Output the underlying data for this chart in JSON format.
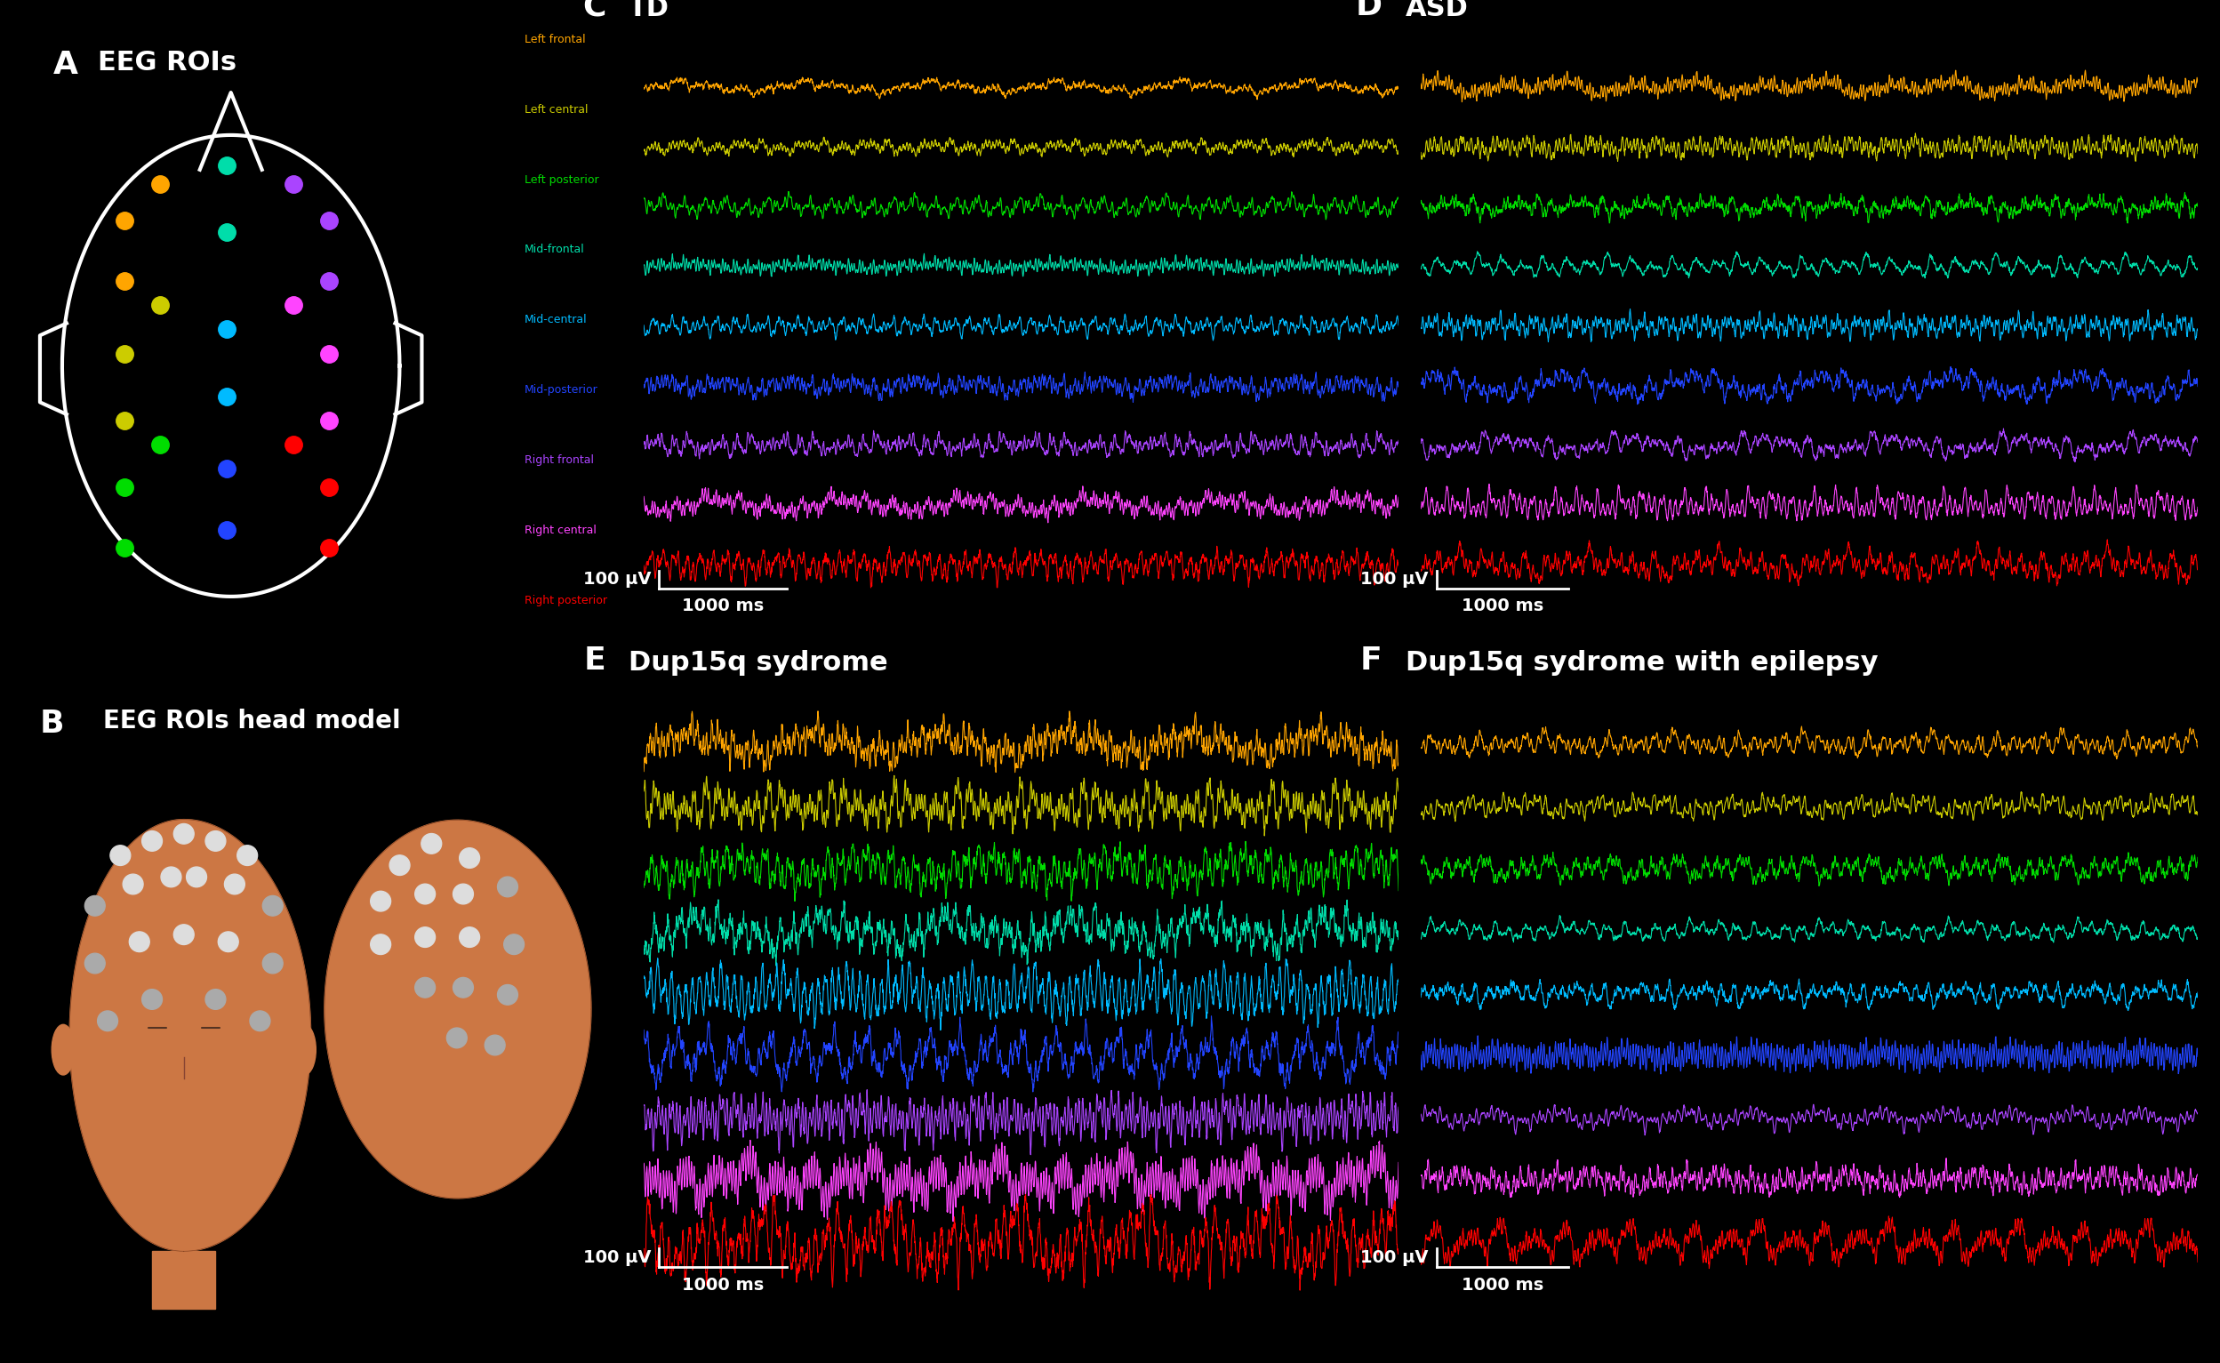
{
  "background_color": "#000000",
  "roi_colors": {
    "Left frontal": "#ffa500",
    "Left central": "#cccc00",
    "Left posterior": "#00dd00",
    "Mid-frontal": "#00ddaa",
    "Mid-central": "#00bbff",
    "Mid-posterior": "#2244ff",
    "Right frontal": "#aa44ff",
    "Right central": "#ff44ff",
    "Right posterior": "#ff0000"
  },
  "signal_colors": [
    "#ffa500",
    "#cccc00",
    "#00dd00",
    "#00ddaa",
    "#00bbff",
    "#2244ff",
    "#aa44ff",
    "#ff44ff",
    "#ff0000"
  ],
  "scalebar_uv": "100 μV",
  "scalebar_ms": "1000 ms",
  "panel_titles": {
    "A": "EEG ROIs",
    "B": "EEG ROIs head model",
    "C": "TD",
    "D": "ASD",
    "E": "Dup15q sydrome",
    "F": "Dup15q sydrome with epilepsy"
  }
}
